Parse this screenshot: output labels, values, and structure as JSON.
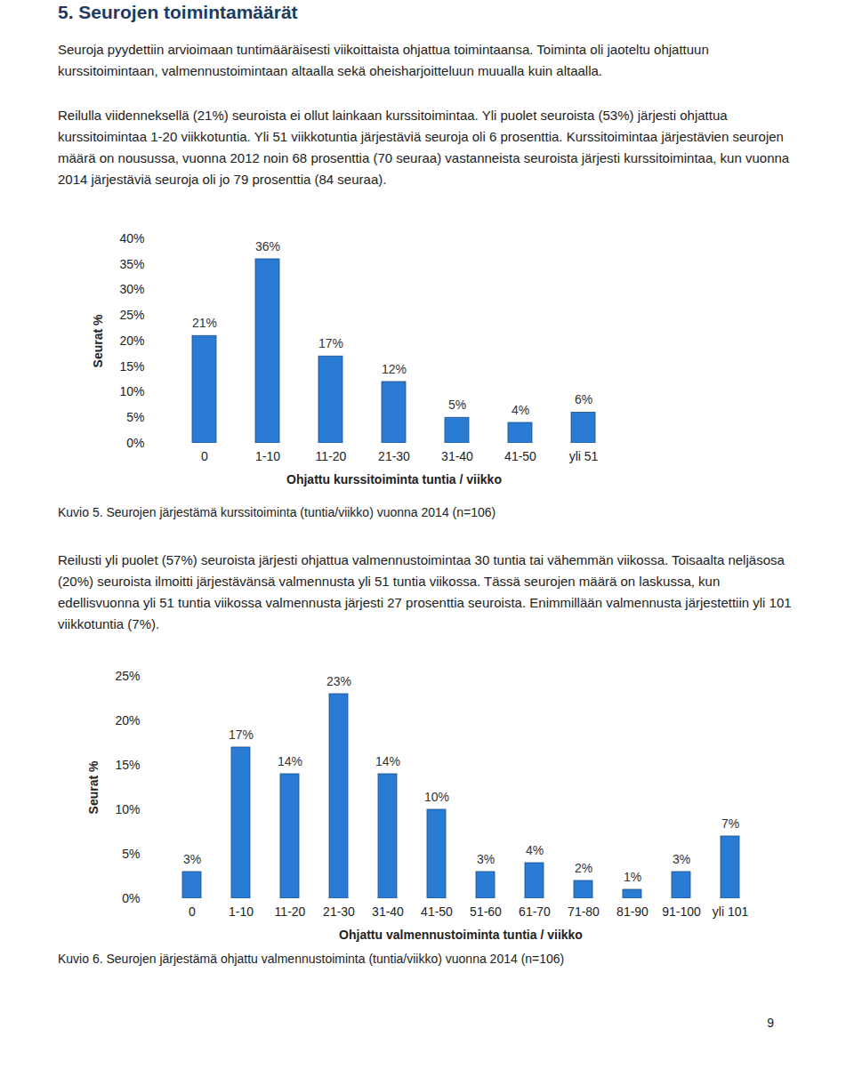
{
  "document": {
    "heading": "5. Seurojen toimintamäärät",
    "paragraphs": [
      "Seuroja pyydettiin arvioimaan tuntimääräisesti viikoittaista ohjattua toimintaansa. Toiminta oli jaoteltu ohjattuun kurssitoimintaan, valmennustoimintaan altaalla sekä oheisharjoitteluun muualla kuin altaalla.",
      "Reilulla viidenneksellä (21%) seuroista ei ollut lainkaan kurssitoimintaa. Yli puolet seuroista (53%) järjesti ohjattua kurssitoimintaa 1-20 viikkotuntia. Yli 51 viikkotuntia järjestäviä seuroja oli 6 prosenttia. Kurssitoimintaa järjestävien seurojen määrä on nousussa, vuonna 2012 noin 68 prosenttia (70 seuraa) vastanneista seuroista järjesti kurssitoimintaa, kun vuonna 2014 järjestäviä seuroja oli jo 79 prosenttia (84 seuraa).",
      "Reilusti yli puolet (57%) seuroista järjesti ohjattua valmennustoimintaa 30 tuntia tai vähemmän viikossa. Toisaalta neljäsosa (20%) seuroista ilmoitti järjestävänsä valmennusta yli 51 tuntia viikossa. Tässä seurojen määrä on laskussa, kun edellisvuonna yli 51 tuntia viikossa valmennusta järjesti 27 prosenttia seuroista. Enimmillään valmennusta järjestettiin yli 101 viikkotuntia (7%)."
    ],
    "page_number": "9"
  },
  "chart_data": [
    {
      "type": "bar",
      "caption": "Kuvio 5. Seurojen järjestämä kurssitoiminta (tuntia/viikko) vuonna 2014 (n=106)",
      "x_label": "Ohjattu kurssitoiminta tuntia / viikko",
      "y_label": "Seurat %",
      "categories": [
        "0",
        "1-10",
        "11-20",
        "21-30",
        "31-40",
        "41-50",
        "yli 51"
      ],
      "values": [
        21,
        36,
        17,
        12,
        5,
        4,
        6
      ],
      "value_labels": [
        "21%",
        "36%",
        "17%",
        "12%",
        "5%",
        "4%",
        "6%"
      ],
      "color": "#2a7bd4",
      "data_labels": true,
      "grid": false,
      "ylim": [
        0,
        40
      ],
      "yticks": [
        {
          "value": 0,
          "label": "0%"
        },
        {
          "value": 5,
          "label": "5%"
        },
        {
          "value": 10,
          "label": "10%"
        },
        {
          "value": 15,
          "label": "15%"
        },
        {
          "value": 20,
          "label": "20%"
        },
        {
          "value": 25,
          "label": "25%"
        },
        {
          "value": 30,
          "label": "30%"
        },
        {
          "value": 35,
          "label": "35%"
        },
        {
          "value": 40,
          "label": "40%"
        }
      ]
    },
    {
      "type": "bar",
      "caption": "Kuvio 6. Seurojen järjestämä ohjattu valmennustoiminta (tuntia/viikko) vuonna 2014 (n=106)",
      "x_label": "Ohjattu valmennustoiminta tuntia / viikko",
      "y_label": "Seurat %",
      "categories": [
        "0",
        "1-10",
        "11-20",
        "21-30",
        "31-40",
        "41-50",
        "51-60",
        "61-70",
        "71-80",
        "81-90",
        "91-100",
        "yli 101"
      ],
      "values": [
        3,
        17,
        14,
        23,
        14,
        10,
        3,
        4,
        2,
        1,
        3,
        7
      ],
      "value_labels": [
        "3%",
        "17%",
        "14%",
        "23%",
        "14%",
        "10%",
        "3%",
        "4%",
        "2%",
        "1%",
        "3%",
        "7%"
      ],
      "color": "#2a7bd4",
      "data_labels": true,
      "grid": false,
      "ylim": [
        0,
        25
      ],
      "yticks": [
        {
          "value": 0,
          "label": "0%"
        },
        {
          "value": 5,
          "label": "5%"
        },
        {
          "value": 10,
          "label": "10%"
        },
        {
          "value": 15,
          "label": "15%"
        },
        {
          "value": 20,
          "label": "20%"
        },
        {
          "value": 25,
          "label": "25%"
        }
      ]
    }
  ]
}
